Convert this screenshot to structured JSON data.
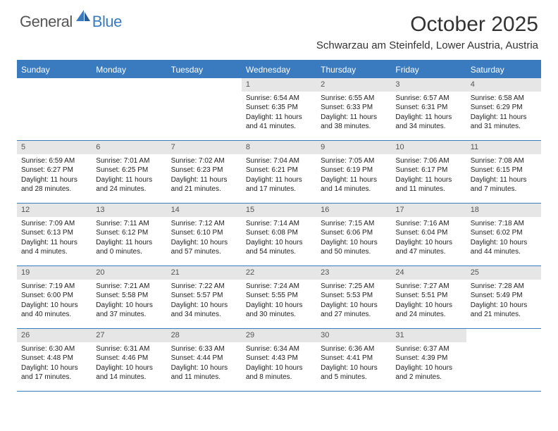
{
  "brand": {
    "general": "General",
    "blue": "Blue"
  },
  "title": "October 2025",
  "location": "Schwarzau am Steinfeld, Lower Austria, Austria",
  "colors": {
    "header_bg": "#3a7bbf",
    "header_text": "#ffffff",
    "daynum_bg": "#e6e6e6",
    "daynum_text": "#555555",
    "border": "#3a7bbf",
    "body_text": "#222222",
    "page_bg": "#ffffff"
  },
  "day_names": [
    "Sunday",
    "Monday",
    "Tuesday",
    "Wednesday",
    "Thursday",
    "Friday",
    "Saturday"
  ],
  "weeks": [
    [
      {
        "n": "",
        "sr": "",
        "ss": "",
        "dl": ""
      },
      {
        "n": "",
        "sr": "",
        "ss": "",
        "dl": ""
      },
      {
        "n": "",
        "sr": "",
        "ss": "",
        "dl": ""
      },
      {
        "n": "1",
        "sr": "Sunrise: 6:54 AM",
        "ss": "Sunset: 6:35 PM",
        "dl": "Daylight: 11 hours and 41 minutes."
      },
      {
        "n": "2",
        "sr": "Sunrise: 6:55 AM",
        "ss": "Sunset: 6:33 PM",
        "dl": "Daylight: 11 hours and 38 minutes."
      },
      {
        "n": "3",
        "sr": "Sunrise: 6:57 AM",
        "ss": "Sunset: 6:31 PM",
        "dl": "Daylight: 11 hours and 34 minutes."
      },
      {
        "n": "4",
        "sr": "Sunrise: 6:58 AM",
        "ss": "Sunset: 6:29 PM",
        "dl": "Daylight: 11 hours and 31 minutes."
      }
    ],
    [
      {
        "n": "5",
        "sr": "Sunrise: 6:59 AM",
        "ss": "Sunset: 6:27 PM",
        "dl": "Daylight: 11 hours and 28 minutes."
      },
      {
        "n": "6",
        "sr": "Sunrise: 7:01 AM",
        "ss": "Sunset: 6:25 PM",
        "dl": "Daylight: 11 hours and 24 minutes."
      },
      {
        "n": "7",
        "sr": "Sunrise: 7:02 AM",
        "ss": "Sunset: 6:23 PM",
        "dl": "Daylight: 11 hours and 21 minutes."
      },
      {
        "n": "8",
        "sr": "Sunrise: 7:04 AM",
        "ss": "Sunset: 6:21 PM",
        "dl": "Daylight: 11 hours and 17 minutes."
      },
      {
        "n": "9",
        "sr": "Sunrise: 7:05 AM",
        "ss": "Sunset: 6:19 PM",
        "dl": "Daylight: 11 hours and 14 minutes."
      },
      {
        "n": "10",
        "sr": "Sunrise: 7:06 AM",
        "ss": "Sunset: 6:17 PM",
        "dl": "Daylight: 11 hours and 11 minutes."
      },
      {
        "n": "11",
        "sr": "Sunrise: 7:08 AM",
        "ss": "Sunset: 6:15 PM",
        "dl": "Daylight: 11 hours and 7 minutes."
      }
    ],
    [
      {
        "n": "12",
        "sr": "Sunrise: 7:09 AM",
        "ss": "Sunset: 6:13 PM",
        "dl": "Daylight: 11 hours and 4 minutes."
      },
      {
        "n": "13",
        "sr": "Sunrise: 7:11 AM",
        "ss": "Sunset: 6:12 PM",
        "dl": "Daylight: 11 hours and 0 minutes."
      },
      {
        "n": "14",
        "sr": "Sunrise: 7:12 AM",
        "ss": "Sunset: 6:10 PM",
        "dl": "Daylight: 10 hours and 57 minutes."
      },
      {
        "n": "15",
        "sr": "Sunrise: 7:14 AM",
        "ss": "Sunset: 6:08 PM",
        "dl": "Daylight: 10 hours and 54 minutes."
      },
      {
        "n": "16",
        "sr": "Sunrise: 7:15 AM",
        "ss": "Sunset: 6:06 PM",
        "dl": "Daylight: 10 hours and 50 minutes."
      },
      {
        "n": "17",
        "sr": "Sunrise: 7:16 AM",
        "ss": "Sunset: 6:04 PM",
        "dl": "Daylight: 10 hours and 47 minutes."
      },
      {
        "n": "18",
        "sr": "Sunrise: 7:18 AM",
        "ss": "Sunset: 6:02 PM",
        "dl": "Daylight: 10 hours and 44 minutes."
      }
    ],
    [
      {
        "n": "19",
        "sr": "Sunrise: 7:19 AM",
        "ss": "Sunset: 6:00 PM",
        "dl": "Daylight: 10 hours and 40 minutes."
      },
      {
        "n": "20",
        "sr": "Sunrise: 7:21 AM",
        "ss": "Sunset: 5:58 PM",
        "dl": "Daylight: 10 hours and 37 minutes."
      },
      {
        "n": "21",
        "sr": "Sunrise: 7:22 AM",
        "ss": "Sunset: 5:57 PM",
        "dl": "Daylight: 10 hours and 34 minutes."
      },
      {
        "n": "22",
        "sr": "Sunrise: 7:24 AM",
        "ss": "Sunset: 5:55 PM",
        "dl": "Daylight: 10 hours and 30 minutes."
      },
      {
        "n": "23",
        "sr": "Sunrise: 7:25 AM",
        "ss": "Sunset: 5:53 PM",
        "dl": "Daylight: 10 hours and 27 minutes."
      },
      {
        "n": "24",
        "sr": "Sunrise: 7:27 AM",
        "ss": "Sunset: 5:51 PM",
        "dl": "Daylight: 10 hours and 24 minutes."
      },
      {
        "n": "25",
        "sr": "Sunrise: 7:28 AM",
        "ss": "Sunset: 5:49 PM",
        "dl": "Daylight: 10 hours and 21 minutes."
      }
    ],
    [
      {
        "n": "26",
        "sr": "Sunrise: 6:30 AM",
        "ss": "Sunset: 4:48 PM",
        "dl": "Daylight: 10 hours and 17 minutes."
      },
      {
        "n": "27",
        "sr": "Sunrise: 6:31 AM",
        "ss": "Sunset: 4:46 PM",
        "dl": "Daylight: 10 hours and 14 minutes."
      },
      {
        "n": "28",
        "sr": "Sunrise: 6:33 AM",
        "ss": "Sunset: 4:44 PM",
        "dl": "Daylight: 10 hours and 11 minutes."
      },
      {
        "n": "29",
        "sr": "Sunrise: 6:34 AM",
        "ss": "Sunset: 4:43 PM",
        "dl": "Daylight: 10 hours and 8 minutes."
      },
      {
        "n": "30",
        "sr": "Sunrise: 6:36 AM",
        "ss": "Sunset: 4:41 PM",
        "dl": "Daylight: 10 hours and 5 minutes."
      },
      {
        "n": "31",
        "sr": "Sunrise: 6:37 AM",
        "ss": "Sunset: 4:39 PM",
        "dl": "Daylight: 10 hours and 2 minutes."
      },
      {
        "n": "",
        "sr": "",
        "ss": "",
        "dl": ""
      }
    ]
  ]
}
